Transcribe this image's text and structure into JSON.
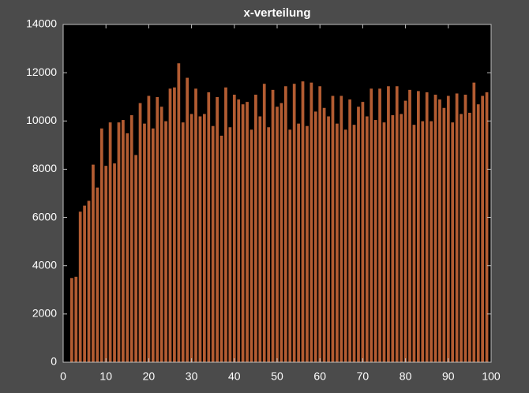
{
  "chart_data": {
    "type": "bar",
    "title": "x-verteilung",
    "x": [
      2,
      3,
      4,
      5,
      6,
      7,
      8,
      9,
      10,
      11,
      12,
      13,
      14,
      15,
      16,
      17,
      18,
      19,
      20,
      21,
      22,
      23,
      24,
      25,
      26,
      27,
      28,
      29,
      30,
      31,
      32,
      33,
      34,
      35,
      36,
      37,
      38,
      39,
      40,
      41,
      42,
      43,
      44,
      45,
      46,
      47,
      48,
      49,
      50,
      51,
      52,
      53,
      54,
      55,
      56,
      57,
      58,
      59,
      60,
      61,
      62,
      63,
      64,
      65,
      66,
      67,
      68,
      69,
      70,
      71,
      72,
      73,
      74,
      75,
      76,
      77,
      78,
      79,
      80,
      81,
      82,
      83,
      84,
      85,
      86,
      87,
      88,
      89,
      90,
      91,
      92,
      93,
      94,
      95,
      96,
      97,
      98,
      99
    ],
    "values": [
      3500,
      3550,
      6250,
      6500,
      6700,
      8200,
      7250,
      9700,
      8150,
      9950,
      8250,
      9950,
      10050,
      9500,
      10250,
      8600,
      10750,
      9900,
      11050,
      9700,
      11000,
      10600,
      10000,
      11350,
      11400,
      12400,
      9950,
      11800,
      10300,
      11350,
      10200,
      10300,
      11200,
      9800,
      11000,
      9400,
      11400,
      9750,
      11100,
      10900,
      10700,
      10800,
      9650,
      11100,
      10200,
      11550,
      9750,
      11300,
      10600,
      10750,
      11450,
      9650,
      11550,
      9900,
      11650,
      9800,
      11600,
      10400,
      11450,
      10550,
      10200,
      11050,
      9900,
      11050,
      9650,
      10900,
      9850,
      10600,
      10800,
      10200,
      11350,
      10050,
      11350,
      9950,
      11450,
      10250,
      11450,
      10300,
      10850,
      11300,
      9850,
      11250,
      10000,
      11200,
      10000,
      11100,
      10900,
      10550,
      11050,
      9950,
      11150,
      10300,
      11100,
      10350,
      11600,
      10700,
      11050,
      11200
    ],
    "color": "#b35c32",
    "xlim": [
      0,
      100
    ],
    "xticks": [
      0,
      10,
      20,
      30,
      40,
      50,
      60,
      70,
      80,
      90,
      100
    ],
    "ylim": [
      0,
      14000
    ],
    "yticks": [
      0,
      2000,
      4000,
      6000,
      8000,
      10000,
      12000,
      14000
    ]
  }
}
